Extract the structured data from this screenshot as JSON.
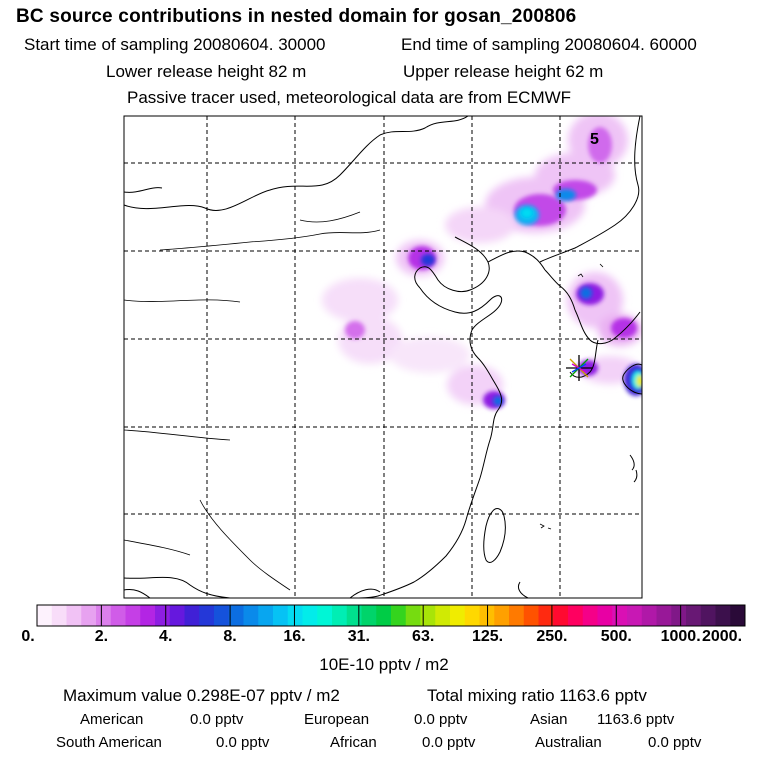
{
  "header": {
    "title": "BC  source contributions in nested domain for gosan_200806",
    "start_time": "Start time of sampling 20080604. 30000",
    "end_time": "End time of sampling 20080604. 60000",
    "lower_release": "Lower release height   82 m",
    "upper_release": "Upper release height   62 m",
    "tracer_info": "Passive tracer used, meteorological data are from ECMWF"
  },
  "map": {
    "corner_label": "5",
    "receptor_marker": "star-marker"
  },
  "colorbar": {
    "labels": [
      "0.",
      "2.",
      "4.",
      "8.",
      "16.",
      "31.",
      "63.",
      "125.",
      "250.",
      "500.",
      "1000.",
      "2000."
    ],
    "colors": [
      "#fdf2fd",
      "#f8ddf9",
      "#f1c2f5",
      "#e7a2f0",
      "#dc80ec",
      "#d05ce8",
      "#c53fe6",
      "#b325e4",
      "#8e1ee2",
      "#6618de",
      "#4020d6",
      "#2438d8",
      "#1552dc",
      "#0c6ee2",
      "#0a8aea",
      "#08a6f0",
      "#06c2f4",
      "#04dcf2",
      "#02ecea",
      "#00f6d6",
      "#00eeb4",
      "#00e08e",
      "#00d46a",
      "#00cc46",
      "#34d41e",
      "#76dc10",
      "#a8e408",
      "#d0ea04",
      "#f0ec00",
      "#ffd800",
      "#ffbe00",
      "#ffa000",
      "#ff7a00",
      "#ff5200",
      "#ff2a10",
      "#ff0a30",
      "#ff0060",
      "#f50088",
      "#e800a4",
      "#da10b4",
      "#c818b4",
      "#b018a8",
      "#981898",
      "#801888",
      "#681874",
      "#501460",
      "#3c104c",
      "#2a0a38"
    ],
    "units": "10E-10 pptv / m2"
  },
  "summary": {
    "max_value": "Maximum value  0.298E-07 pptv / m2",
    "total_mixing": "Total mixing ratio     1163.6 pptv",
    "american_label": "American",
    "american_value": "0.0 pptv",
    "european_label": "European",
    "european_value": "0.0 pptv",
    "asian_label": "Asian",
    "asian_value": "1163.6 pptv",
    "south_american_label": "South American",
    "south_american_value": "0.0 pptv",
    "african_label": "African",
    "african_value": "0.0 pptv",
    "australian_label": "Australian",
    "australian_value": "0.0 pptv"
  }
}
